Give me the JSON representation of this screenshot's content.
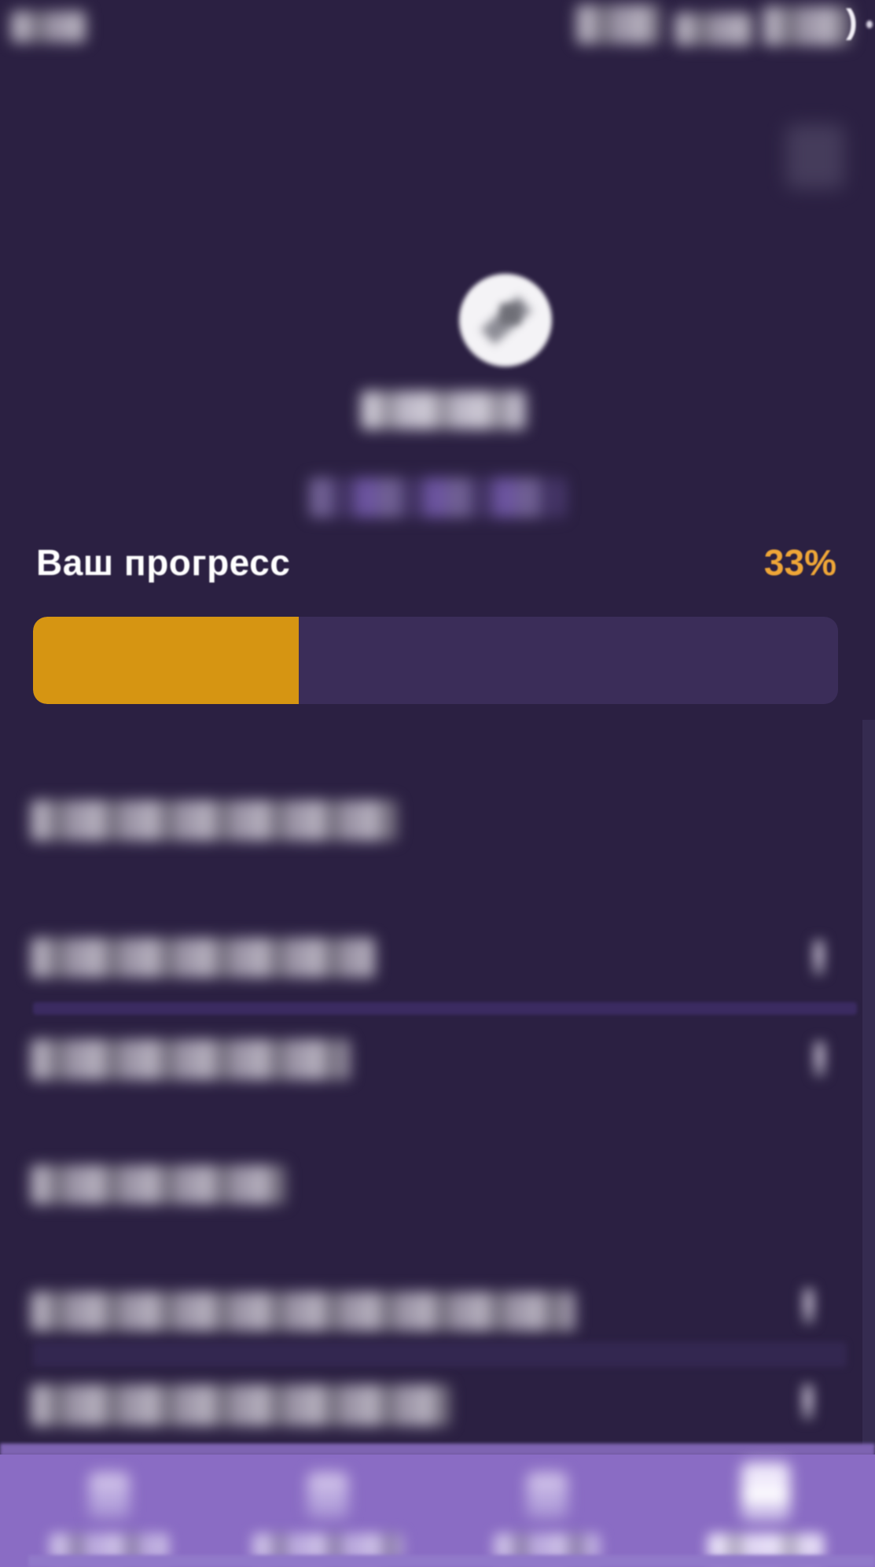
{
  "theme": {
    "background": "#2b2042",
    "progress_track": "#3b2d59",
    "progress_fill": "#d69512",
    "progress_value_color": "#efa637",
    "divider_bright": "#3b2b61",
    "divider_subtle": "#332750",
    "nav_background": "#8a6cc4",
    "scrollbar": "#352b50"
  },
  "status_bar": {
    "time_redacted": true,
    "battery_icon_glyph": ")"
  },
  "profile": {
    "avatar_redacted": true,
    "name_redacted": true,
    "link_redacted": true
  },
  "progress": {
    "label": "Ваш прогресс",
    "value": "33%",
    "percent": 33
  },
  "sections": [
    {
      "title_redacted": true,
      "items": [
        {
          "label_redacted": true,
          "has_chevron": true,
          "divider_after": true
        },
        {
          "label_redacted": true,
          "has_chevron": true,
          "divider_after": false
        }
      ]
    },
    {
      "title_redacted": true,
      "items": [
        {
          "label_redacted": true,
          "has_chevron": true,
          "divider_after": true
        },
        {
          "label_redacted": true,
          "has_chevron": true,
          "divider_after": false
        }
      ]
    }
  ],
  "nav": {
    "item_count": 4,
    "active_index": 3,
    "labels_redacted": true
  }
}
